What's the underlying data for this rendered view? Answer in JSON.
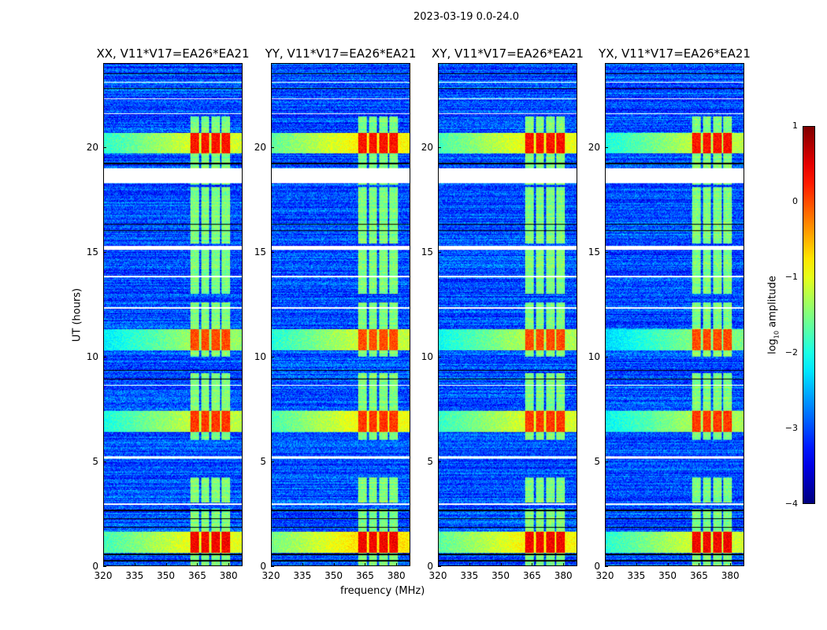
{
  "chart_data": {
    "type": "heatmap",
    "title": "2023-03-19 0.0-24.0",
    "ylabel": "UT (hours)",
    "xlabel": "frequency (MHz)",
    "xlim": [
      320,
      386.7
    ],
    "ylim": [
      0,
      24
    ],
    "xticks": [
      "320",
      "335",
      "350",
      "365",
      "380"
    ],
    "yticks": [
      "0",
      "5",
      "10",
      "15",
      "20"
    ],
    "panels": [
      {
        "title": "XX, V11*V17=EA26*EA21",
        "broadband_boost": 1.0
      },
      {
        "title": "YY, V11*V17=EA26*EA21",
        "broadband_boost": 1.4
      },
      {
        "title": "XY, V11*V17=EA26*EA21",
        "broadband_boost": 1.2
      },
      {
        "title": "YX, V11*V17=EA26*EA21",
        "broadband_boost": 0.8
      }
    ],
    "colorbar": {
      "label": "log10 amplitude",
      "label_main": "log",
      "label_sub": "10",
      "label_rest": " amplitude",
      "range": [
        -4,
        1
      ],
      "ticks": [
        "1",
        "0",
        "−1",
        "−2",
        "−3",
        "−4"
      ],
      "colormap": "jet"
    },
    "background_level": -3.0,
    "rfi_channels_mhz": [
      [
        362,
        366
      ],
      [
        367,
        371
      ],
      [
        372,
        376
      ],
      [
        377,
        381
      ]
    ],
    "rfi_level": -1.5,
    "rfi_active_hours": [
      [
        0,
        2.7
      ],
      [
        3,
        4.2
      ],
      [
        6,
        9.2
      ],
      [
        10,
        12.6
      ],
      [
        13,
        15.1
      ],
      [
        15.4,
        18.1
      ],
      [
        18.2,
        18.4
      ],
      [
        19,
        21.5
      ]
    ],
    "bursts_hours": [
      {
        "range": [
          0.6,
          1.6
        ],
        "rfi": 0.4,
        "broad": -1.0
      },
      {
        "range": [
          6.4,
          7.4
        ],
        "rfi": 0.1,
        "broad": -1.2
      },
      {
        "range": [
          10.3,
          11.3
        ],
        "rfi": 0.0,
        "broad": -1.4
      },
      {
        "range": [
          19.7,
          20.7
        ],
        "rfi": 0.3,
        "broad": -1.1
      }
    ],
    "flagged_hours": [
      [
        18.3,
        19.0
      ],
      [
        15.1,
        15.3
      ],
      [
        5.1,
        5.22
      ],
      [
        2.9,
        2.95
      ],
      [
        8.6,
        8.65
      ],
      [
        12.3,
        12.35
      ],
      [
        13.8,
        13.85
      ],
      [
        21.6,
        21.65
      ],
      [
        22.3,
        22.35
      ],
      [
        23.1,
        23.15
      ]
    ],
    "dropout_hours": [
      [
        0.2,
        0.25
      ],
      [
        0.5,
        0.55
      ],
      [
        1.8,
        1.85
      ],
      [
        2.2,
        2.25
      ],
      [
        2.6,
        2.65
      ],
      [
        8.9,
        8.95
      ],
      [
        9.3,
        9.35
      ],
      [
        16.0,
        16.05
      ],
      [
        16.3,
        16.35
      ],
      [
        19.2,
        19.25
      ],
      [
        22.8,
        22.85
      ],
      [
        23.5,
        23.55
      ]
    ]
  }
}
